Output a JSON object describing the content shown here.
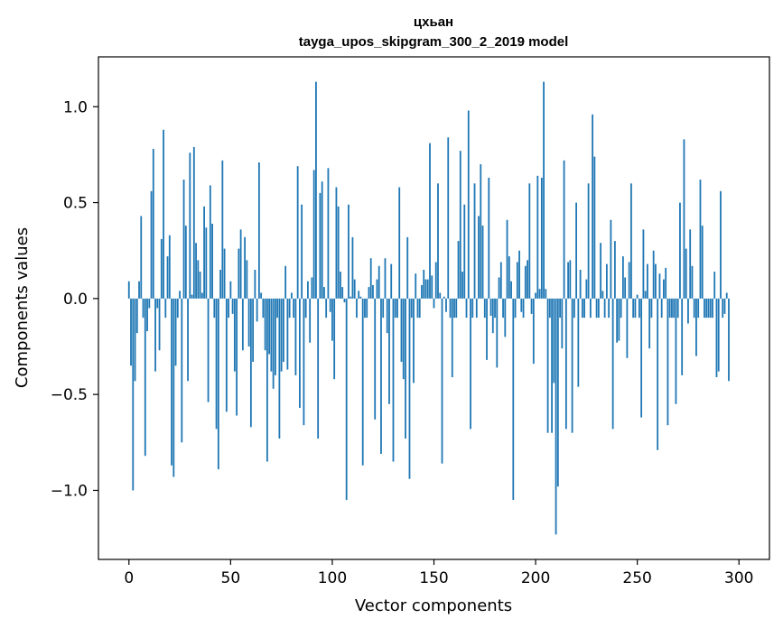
{
  "chart_data": {
    "type": "bar",
    "title": "цхьан",
    "subtitle": "tayga_upos_skipgram_300_2_2019 model",
    "xlabel": "Vector components",
    "ylabel": "Components values",
    "xlim": [
      -15,
      315
    ],
    "ylim": [
      -1.36,
      1.26
    ],
    "xticks": [
      0,
      50,
      100,
      150,
      200,
      250,
      300
    ],
    "yticks": [
      -1.0,
      -0.5,
      0.0,
      0.5,
      1.0
    ],
    "ytick_labels": [
      "−1.0",
      "−0.5",
      "0.0",
      "0.5",
      "1.0"
    ],
    "bar_color": "#1f77b4",
    "values": [
      0.09,
      -0.35,
      -1.0,
      -0.43,
      -0.18,
      0.09,
      0.43,
      -0.1,
      -0.82,
      -0.17,
      -0.05,
      0.56,
      0.78,
      -0.38,
      -0.05,
      -0.27,
      0.31,
      0.88,
      -0.1,
      0.22,
      0.33,
      -0.87,
      -0.93,
      -0.35,
      -0.1,
      0.04,
      -0.75,
      0.62,
      0.38,
      -0.43,
      0.76,
      0.02,
      0.79,
      0.29,
      0.2,
      0.14,
      0.03,
      0.48,
      0.37,
      -0.54,
      0.59,
      0.39,
      -0.1,
      -0.68,
      -0.89,
      0.15,
      0.72,
      0.26,
      -0.59,
      -0.1,
      0.09,
      -0.08,
      -0.38,
      -0.61,
      0.26,
      0.36,
      -0.27,
      0.32,
      0.2,
      -0.25,
      -0.67,
      -0.33,
      0.15,
      -0.12,
      0.71,
      0.03,
      -0.1,
      -0.27,
      -0.85,
      -0.29,
      -0.38,
      -0.47,
      -0.4,
      -0.1,
      -0.73,
      -0.38,
      -0.33,
      0.17,
      -0.37,
      -0.1,
      0.03,
      -0.1,
      -0.4,
      0.69,
      -0.57,
      0.49,
      -0.66,
      -0.1,
      0.09,
      -0.23,
      0.11,
      0.67,
      1.13,
      -0.73,
      0.55,
      0.61,
      0.06,
      -0.1,
      0.68,
      -0.07,
      -0.22,
      -0.42,
      0.58,
      0.48,
      0.14,
      0.06,
      -0.02,
      -1.05,
      0.49,
      0.01,
      0.32,
      0.1,
      -0.1,
      0.04,
      0.01,
      -0.87,
      -0.1,
      -0.1,
      0.06,
      0.21,
      0.07,
      -0.63,
      0.1,
      0.17,
      -0.81,
      -0.1,
      0.21,
      -0.18,
      -0.55,
      0.18,
      -0.85,
      -0.1,
      -0.1,
      0.58,
      -0.33,
      -0.42,
      -0.73,
      0.32,
      -0.94,
      -0.1,
      -0.44,
      0.13,
      -0.1,
      -0.1,
      0.07,
      0.15,
      0.1,
      0.1,
      0.81,
      0.12,
      -0.05,
      0.19,
      0.6,
      0.03,
      -0.86,
      0.01,
      -0.07,
      0.84,
      -0.1,
      -0.41,
      -0.1,
      -0.1,
      0.3,
      0.77,
      0.14,
      0.49,
      -0.1,
      0.98,
      -0.68,
      -0.1,
      0.6,
      -0.1,
      0.43,
      0.7,
      0.38,
      -0.1,
      -0.32,
      0.63,
      -0.09,
      -0.18,
      -0.1,
      -0.36,
      0.11,
      0.19,
      -0.1,
      -0.2,
      0.41,
      0.22,
      0.09,
      -1.05,
      -0.1,
      0.19,
      0.25,
      -0.07,
      -0.1,
      0.17,
      0.2,
      0.6,
      -0.08,
      -0.34,
      0.03,
      0.64,
      0.05,
      0.63,
      1.13,
      0.05,
      -0.7,
      -0.1,
      -0.7,
      -0.44,
      -1.23,
      -0.98,
      -0.1,
      -0.26,
      0.72,
      -0.68,
      0.19,
      0.2,
      -0.7,
      -0.1,
      0.5,
      -0.46,
      0.15,
      -0.1,
      -0.1,
      0.1,
      0.6,
      -0.1,
      0.96,
      0.74,
      -0.1,
      -0.1,
      0.29,
      0.04,
      -0.1,
      0.18,
      -0.1,
      0.41,
      -0.68,
      0.3,
      -0.23,
      -0.22,
      -0.1,
      0.22,
      0.11,
      -0.31,
      0.19,
      0.6,
      -0.1,
      -0.1,
      0.02,
      -0.1,
      -0.62,
      0.36,
      0.04,
      0.18,
      -0.26,
      -0.1,
      0.25,
      0.18,
      -0.79,
      0.13,
      -0.1,
      0.1,
      0.16,
      -0.66,
      -0.1,
      -0.1,
      -0.1,
      -0.55,
      -0.1,
      0.5,
      -0.4,
      0.83,
      0.26,
      -0.13,
      0.36,
      0.17,
      -0.1,
      -0.3,
      -0.1,
      0.62,
      0.38,
      -0.1,
      -0.1,
      -0.1,
      -0.1,
      -0.1,
      0.14,
      -0.41,
      -0.38,
      0.56,
      -0.1,
      -0.08,
      0.03,
      -0.43
    ]
  }
}
